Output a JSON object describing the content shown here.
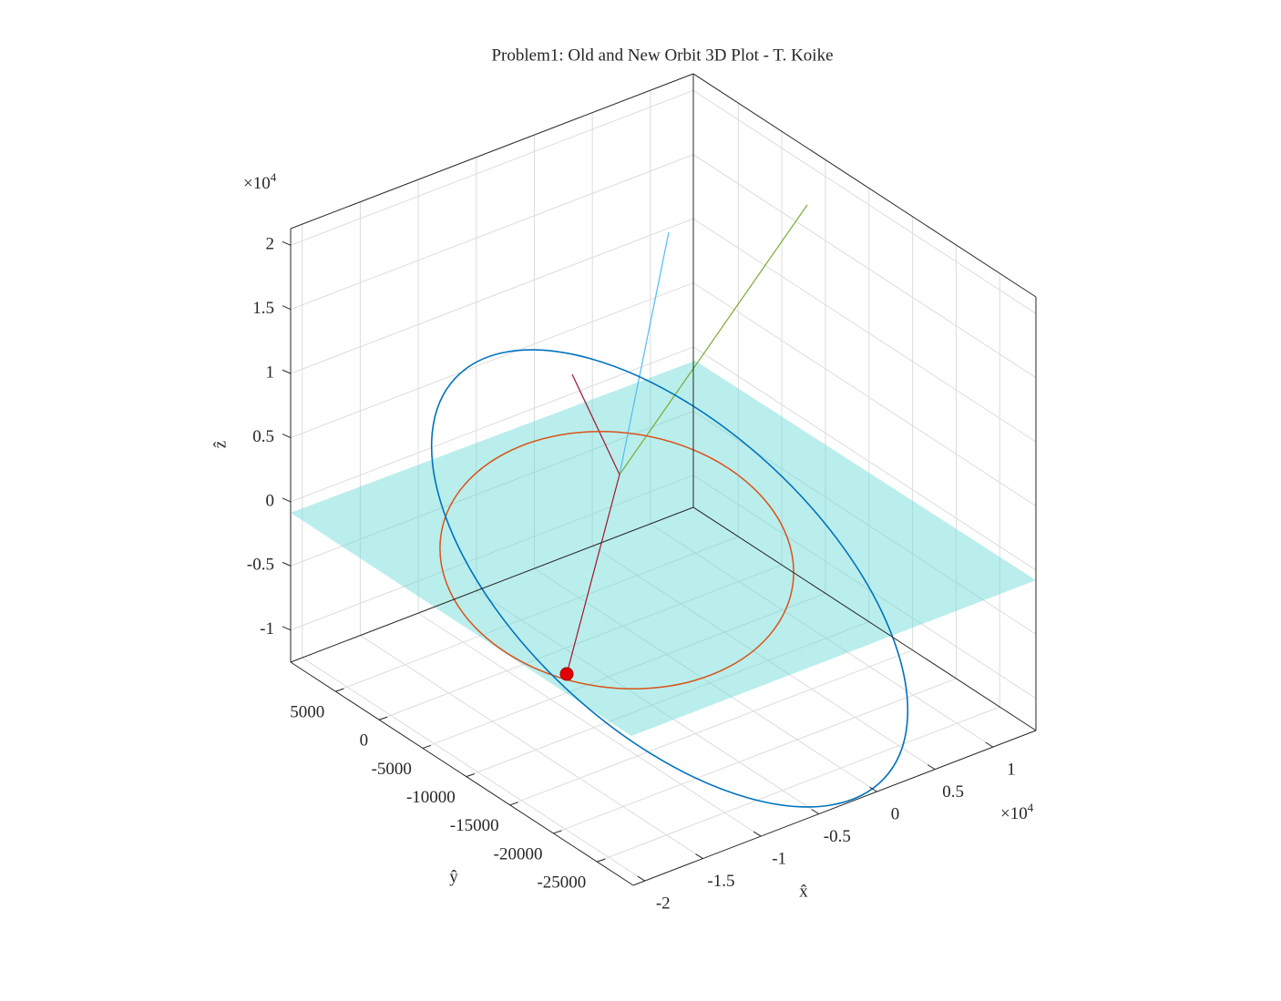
{
  "chart_data": {
    "type": "surface3d",
    "title": "Problem1: Old and New Orbit 3D Plot - T. Koike",
    "x_label": "x̂",
    "y_label": "ŷ",
    "z_label": "ẑ",
    "x_exponent": {
      "base": "×10",
      "power": "4"
    },
    "z_exponent": {
      "base": "×10",
      "power": "4"
    },
    "xlim": [
      -2.1,
      1.37
    ],
    "xticks": [
      -2,
      -1.5,
      -1,
      -0.5,
      0,
      0.5,
      1
    ],
    "ylim": [
      -29150,
      10150
    ],
    "yticks": [
      -25000,
      -20000,
      -15000,
      -10000,
      -5000,
      0,
      5000
    ],
    "zlim": [
      -1.25,
      2.13
    ],
    "zticks": [
      -1,
      -0.5,
      0,
      0.5,
      1,
      1.5,
      2
    ],
    "grid": true
  }
}
